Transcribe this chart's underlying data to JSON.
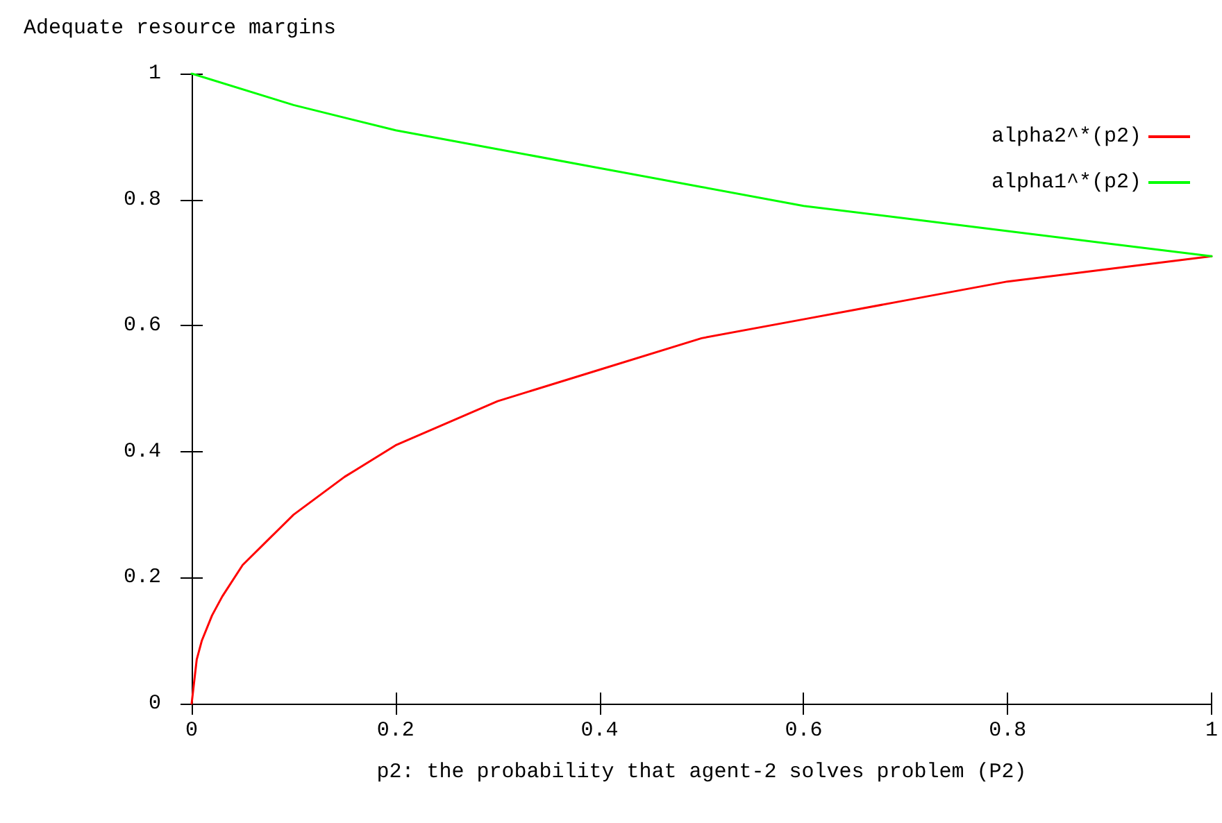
{
  "chart_data": {
    "type": "line",
    "ylabel": "Adequate resource margins",
    "xlabel": "p2: the probability that agent-2 solves problem (P2)",
    "series": [
      {
        "name": "alpha2^*(p2)",
        "color": "#ff0000",
        "x": [
          0,
          0.005,
          0.01,
          0.02,
          0.03,
          0.05,
          0.075,
          0.1,
          0.15,
          0.2,
          0.3,
          0.4,
          0.5,
          0.6,
          0.7,
          0.8,
          0.9,
          1
        ],
        "values": [
          0,
          0.07,
          0.1,
          0.14,
          0.17,
          0.22,
          0.26,
          0.3,
          0.36,
          0.41,
          0.48,
          0.53,
          0.58,
          0.61,
          0.64,
          0.67,
          0.69,
          0.71
        ]
      },
      {
        "name": "alpha1^*(p2)",
        "color": "#00ff00",
        "x": [
          0,
          0.1,
          0.2,
          0.3,
          0.4,
          0.5,
          0.6,
          0.7,
          0.8,
          0.9,
          1
        ],
        "values": [
          1,
          0.95,
          0.91,
          0.88,
          0.85,
          0.82,
          0.79,
          0.77,
          0.75,
          0.73,
          0.71
        ]
      }
    ],
    "xlim": [
      0,
      1
    ],
    "xticks": [
      0,
      0.2,
      0.4,
      0.6,
      0.8,
      1
    ],
    "ylim": [
      0,
      1
    ],
    "yticks": [
      0,
      0.2,
      0.4,
      0.6,
      0.8,
      1
    ],
    "grid": false,
    "legend": "top right",
    "marker": "none",
    "line_style": "solid"
  }
}
